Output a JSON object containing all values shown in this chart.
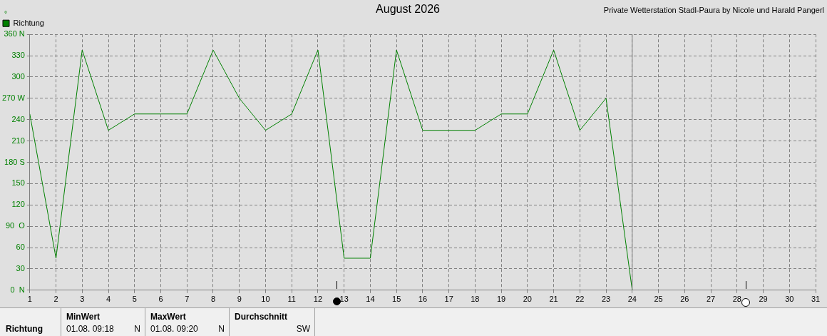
{
  "chart_data": {
    "type": "line",
    "title": "August 2026",
    "ylabel": "°",
    "x": [
      1,
      2,
      3,
      4,
      5,
      6,
      7,
      8,
      9,
      10,
      11,
      12,
      13,
      14,
      15,
      16,
      17,
      18,
      19,
      20,
      21,
      22,
      23,
      24
    ],
    "series": [
      {
        "name": "Richtung",
        "color": "#008000",
        "values": [
          248,
          45,
          338,
          225,
          248,
          248,
          248,
          338,
          270,
          225,
          248,
          338,
          45,
          45,
          338,
          225,
          225,
          225,
          248,
          248,
          338,
          225,
          270,
          0
        ]
      }
    ],
    "xlim": [
      1,
      31
    ],
    "xticks": [
      1,
      2,
      3,
      4,
      5,
      6,
      7,
      8,
      9,
      10,
      11,
      12,
      13,
      14,
      15,
      16,
      17,
      18,
      19,
      20,
      21,
      22,
      23,
      24,
      25,
      26,
      27,
      28,
      29,
      30,
      31
    ],
    "ylim": [
      0,
      360
    ],
    "yticks": [
      {
        "value": 0,
        "label": "0  N"
      },
      30,
      60,
      {
        "value": 90,
        "label": "90  O"
      },
      120,
      150,
      {
        "value": 180,
        "label": "180 S"
      },
      210,
      240,
      {
        "value": 270,
        "label": "270 W"
      },
      300,
      330,
      {
        "value": 360,
        "label": "360 N"
      }
    ],
    "ref_lines": [
      {
        "axis": "x",
        "value": 24,
        "color": "#808080"
      }
    ],
    "grid": true,
    "legend": "top left",
    "marker": "none",
    "line_style": "solid",
    "annotations": [
      "Private Wetterstation Stadl-Paura by Nicole und Harald Pangerl",
      "Richtung",
      "MinWert",
      "01.08.  09:18",
      "N",
      "MaxWert",
      "01.08.  09:20",
      "N",
      "Durchschnitt",
      "SW"
    ]
  }
}
